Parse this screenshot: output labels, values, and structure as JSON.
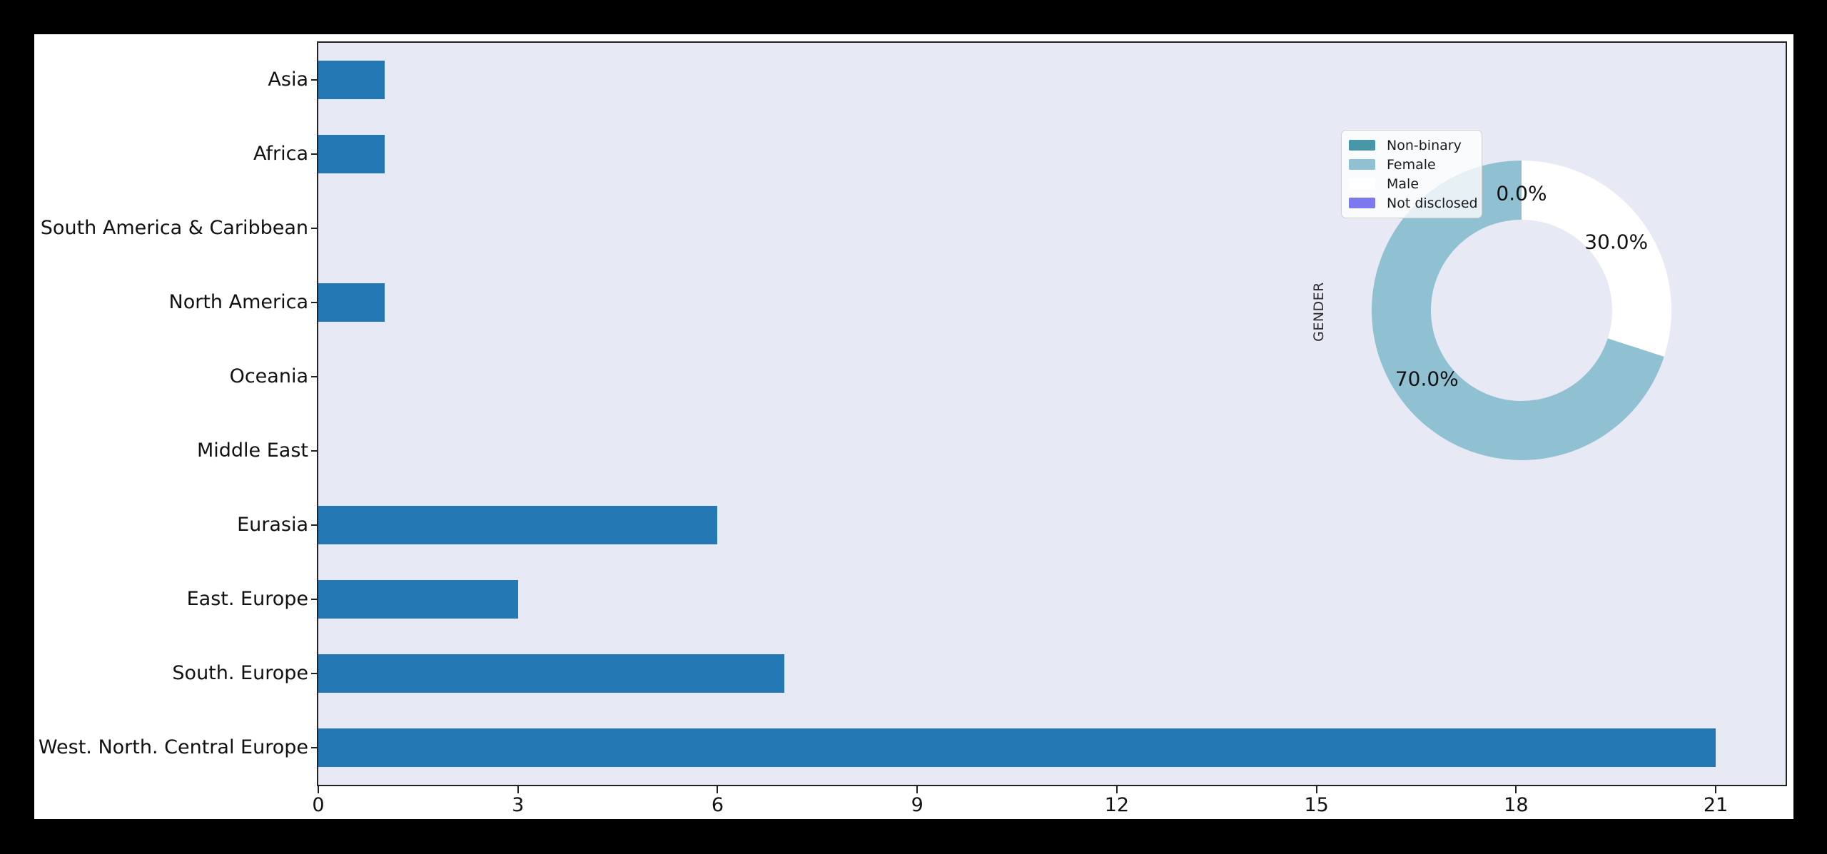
{
  "figure": {
    "page_background": "#000000",
    "figure_background": "#ffffff"
  },
  "chart_data": [
    {
      "type": "bar",
      "orientation": "horizontal",
      "title": "",
      "xlabel": "",
      "ylabel": "",
      "categories": [
        "Asia",
        "Africa",
        "South America & Caribbean",
        "North America",
        "Oceania",
        "Middle East",
        "Eurasia",
        "East. Europe",
        "South. Europe",
        "West. North. Central Europe"
      ],
      "values": [
        1,
        1,
        0,
        1,
        0,
        0,
        6,
        3,
        7,
        21
      ],
      "xticks": [
        0,
        3,
        6,
        9,
        12,
        15,
        18,
        21
      ],
      "xlim": [
        0,
        22.05
      ],
      "grid": false,
      "bar_color": "#2478b4",
      "plot_background": "#e7eaf5",
      "legend_position": "none"
    },
    {
      "type": "pie",
      "donut": true,
      "ylabel": "GENDER",
      "start_angle": 90,
      "counterclock": true,
      "slices": [
        {
          "label": "Non-binary",
          "value_pct": 0,
          "pct_label": "0.0%",
          "color": "#4797a9"
        },
        {
          "label": "Female",
          "value_pct": 70,
          "pct_label": "70.0%",
          "color": "#90c1d2"
        },
        {
          "label": "Male",
          "value_pct": 30,
          "pct_label": "30.0%",
          "color": "#ffffff"
        },
        {
          "label": "Not disclosed",
          "value_pct": 0,
          "pct_label": "0.0%",
          "color": "#7d78ee"
        }
      ],
      "legend_position": "upper left"
    }
  ]
}
